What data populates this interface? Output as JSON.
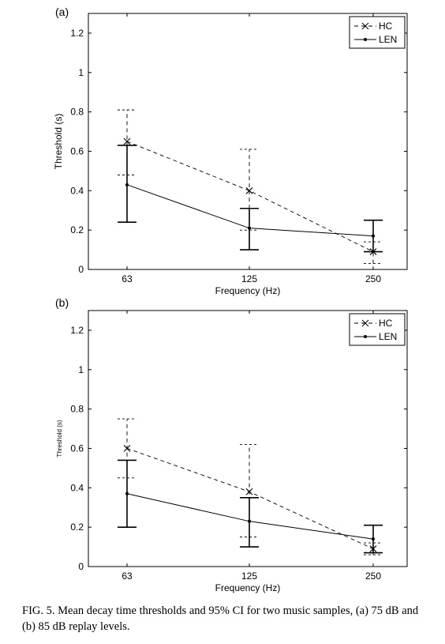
{
  "chart_data": [
    {
      "type": "line",
      "panel_label": "(a)",
      "xlabel": "Frequency (Hz)",
      "ylabel": "Threshold (s)",
      "categories": [
        "63",
        "125",
        "250"
      ],
      "ylim": [
        0,
        1.3
      ],
      "yticks": [
        "0",
        "0.2",
        "0.4",
        "0.6",
        "0.8",
        "1",
        "1.2"
      ],
      "legend_position": "top-right",
      "series": [
        {
          "name": "HC",
          "style": "dashed",
          "marker": "x",
          "values": [
            0.65,
            0.4,
            0.09
          ],
          "ci_low": [
            0.48,
            0.2,
            0.03
          ],
          "ci_high": [
            0.81,
            0.61,
            0.14
          ]
        },
        {
          "name": "LEN",
          "style": "solid",
          "marker": "dot",
          "values": [
            0.43,
            0.21,
            0.17
          ],
          "ci_low": [
            0.24,
            0.1,
            0.09
          ],
          "ci_high": [
            0.63,
            0.31,
            0.25
          ]
        }
      ]
    },
    {
      "type": "line",
      "panel_label": "(b)",
      "xlabel": "Frequency (Hz)",
      "ylabel": "Threshold (s)",
      "categories": [
        "63",
        "125",
        "250"
      ],
      "ylim": [
        0,
        1.3
      ],
      "yticks": [
        "0",
        "0.2",
        "0.4",
        "0.6",
        "0.8",
        "1",
        "1.2"
      ],
      "legend_position": "top-right",
      "series": [
        {
          "name": "HC",
          "style": "dashed",
          "marker": "x",
          "values": [
            0.6,
            0.38,
            0.09
          ],
          "ci_low": [
            0.45,
            0.15,
            0.06
          ],
          "ci_high": [
            0.75,
            0.62,
            0.12
          ]
        },
        {
          "name": "LEN",
          "style": "solid",
          "marker": "dot",
          "values": [
            0.37,
            0.23,
            0.14
          ],
          "ci_low": [
            0.2,
            0.1,
            0.07
          ],
          "ci_high": [
            0.54,
            0.35,
            0.21
          ]
        }
      ]
    }
  ],
  "caption": "FIG. 5. Mean decay time thresholds and 95% CI for two music samples, (a) 75 dB and (b) 85 dB replay levels."
}
